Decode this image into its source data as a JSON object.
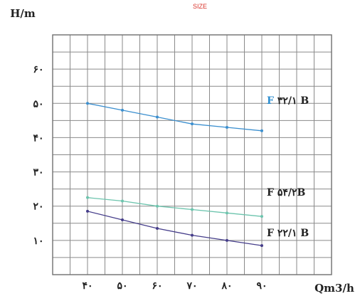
{
  "chart_data": {
    "type": "line",
    "title": "SIZE",
    "xlabel": "Qm3/h",
    "ylabel": "H/m",
    "x": [
      40,
      50,
      60,
      70,
      80,
      90
    ],
    "x_tick_labels": [
      "۴۰",
      "۵۰",
      "۶۰",
      "۷۰",
      "۸۰",
      "۹۰"
    ],
    "y_ticks": [
      10,
      20,
      30,
      40,
      50,
      60
    ],
    "y_tick_labels": [
      "۱۰",
      "۲۰",
      "۳۰",
      "۴۰",
      "۵۰",
      "۶۰"
    ],
    "xlim": [
      30,
      110
    ],
    "ylim": [
      0,
      70
    ],
    "grid": true,
    "series": [
      {
        "name": "F ۳۲/۱ B",
        "name_prefix": "F",
        "name_rest": " ۳۲/۱ B",
        "color": "#3b8fcf",
        "prefix_color": "#2f8fd0",
        "values": [
          50,
          48,
          46,
          44,
          43,
          42
        ]
      },
      {
        "name": "F ۵۴/۲B",
        "name_prefix": "F",
        "name_rest": " ۵۴/۲B",
        "color": "#6cc4ad",
        "prefix_color": "#222222",
        "values": [
          22.5,
          21.5,
          20,
          19,
          18,
          17
        ]
      },
      {
        "name": "F ۲۲/۱ B",
        "name_prefix": "F",
        "name_rest": " ۲۲/۱ B",
        "color": "#453d8a",
        "prefix_color": "#222222",
        "values": [
          18.5,
          16,
          13.5,
          11.5,
          10,
          8.5
        ]
      }
    ]
  }
}
